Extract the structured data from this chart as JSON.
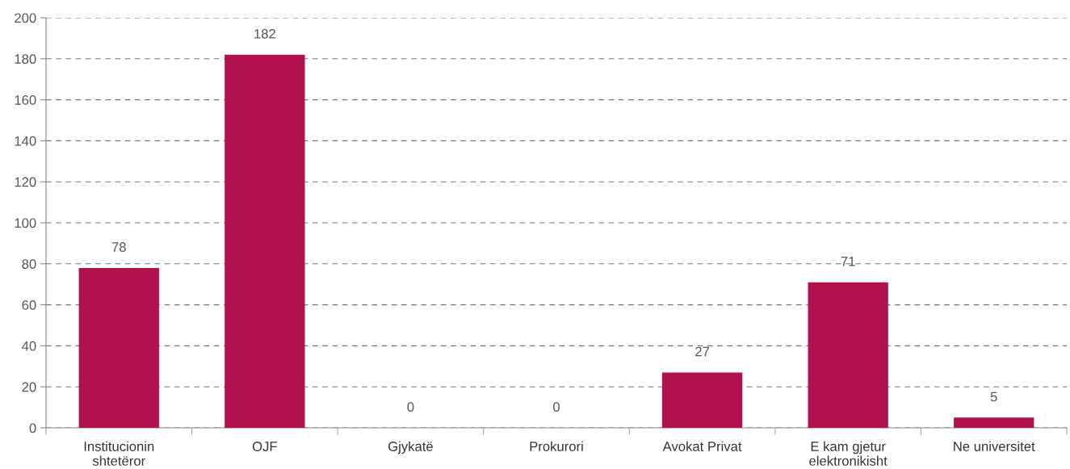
{
  "chart_data": {
    "type": "bar",
    "categories": [
      "Institucionin\nshtetëror",
      "OJF",
      "Gjykatë",
      "Prokurori",
      "Avokat Privat",
      "E kam gjetur\nelektronikisht",
      "Ne universitet"
    ],
    "values": [
      78,
      182,
      0,
      0,
      27,
      71,
      5
    ],
    "color": "#b0124e",
    "ylim": [
      0,
      200
    ],
    "yticks": [
      0,
      20,
      40,
      60,
      80,
      100,
      120,
      140,
      160,
      180,
      200
    ],
    "grid": "y",
    "data_labels": true
  }
}
